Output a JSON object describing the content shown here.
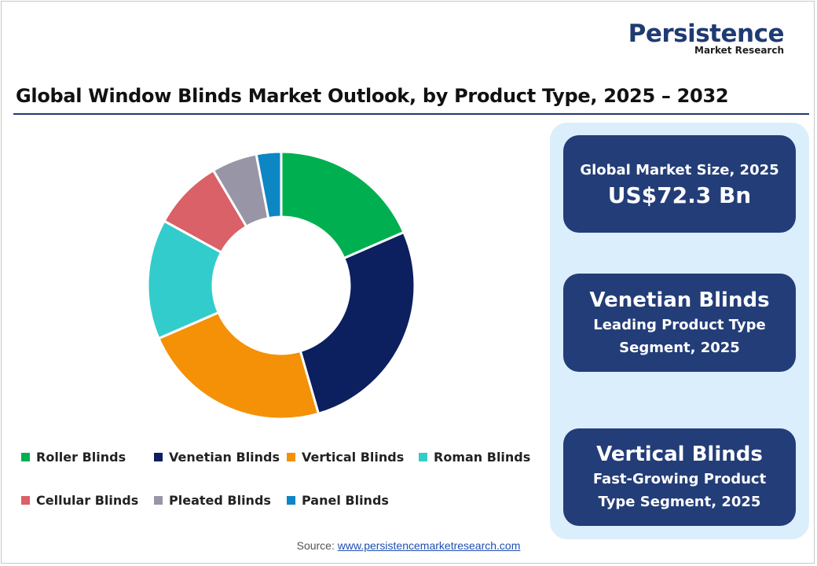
{
  "logo": {
    "main": "Persistence",
    "sub": "Market Research"
  },
  "title": "Global Window Blinds Market Outlook, by Product Type, 2025 – 2032",
  "chart_data": {
    "type": "pie",
    "variant": "donut",
    "title": "Global Window Blinds Market Outlook, by Product Type, 2025 – 2032",
    "legend_position": "bottom",
    "categories": [
      "Roller Blinds",
      "Venetian Blinds",
      "Vertical Blinds",
      "Roman Blinds",
      "Cellular Blinds",
      "Pleated Blinds",
      "Panel Blinds"
    ],
    "values": [
      18.5,
      27.0,
      23.0,
      14.5,
      8.5,
      5.5,
      3.0
    ],
    "colors": [
      "#00b050",
      "#0c1f5e",
      "#f49106",
      "#33cccc",
      "#d96167",
      "#9896a6",
      "#0d86c4"
    ]
  },
  "cards": {
    "market_size": {
      "label": "Global Market Size, 2025",
      "value": "US$72.3 Bn"
    },
    "leading": {
      "name": "Venetian Blinds",
      "line1": "Leading Product Type",
      "line2": "Segment, 2025"
    },
    "growing": {
      "name": "Vertical Blinds",
      "line1": "Fast-Growing Product",
      "line2": "Type Segment, 2025"
    }
  },
  "source": {
    "label": "Source: ",
    "link": "www.persistencemarketresearch.com"
  }
}
